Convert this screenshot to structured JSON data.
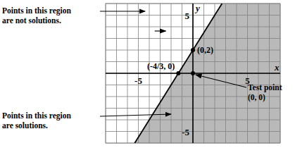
{
  "chart_data": {
    "type": "line",
    "x_label": "x",
    "y_label": "y",
    "xlim": [
      -8,
      8
    ],
    "ylim": [
      -6,
      6
    ],
    "xticks": [
      -5,
      5
    ],
    "yticks": [
      -5,
      5
    ],
    "grid": true,
    "series": [
      {
        "type": "area",
        "color": "#b9b9b9",
        "x": [
          -5.333,
          2.667,
          8,
          8
        ],
        "values": [
          -6,
          6,
          6,
          -6
        ]
      },
      {
        "type": "line",
        "color": "#000000",
        "line_style": "solid",
        "x": [
          -5.333,
          2.667
        ],
        "values": [
          -6,
          6
        ]
      },
      {
        "type": "scatter",
        "color": "#000000",
        "marker": "circle",
        "x": [
          -1.333,
          0,
          0
        ],
        "values": [
          0,
          2,
          0
        ]
      }
    ],
    "annotations": [
      [
        "Points in this region",
        "are not solutions."
      ],
      [
        "Points in this region",
        "are solutions."
      ],
      [
        "Test point",
        "(0, 0)"
      ],
      [
        "(-4/3, 0)"
      ],
      [
        "(0,2)"
      ]
    ]
  }
}
